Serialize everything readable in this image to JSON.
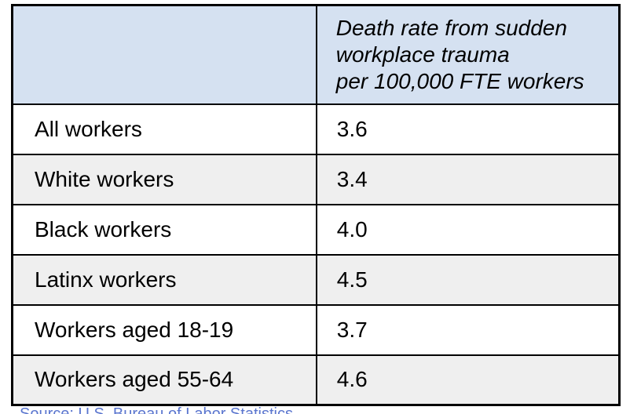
{
  "page": {
    "background": "#ffffff"
  },
  "table": {
    "header": {
      "corner_label": "",
      "value_header": "Death rate from sudden\nworkplace trauma\nper 100,000 FTE workers"
    },
    "rows": [
      {
        "label": "All workers",
        "value": "3.6"
      },
      {
        "label": "White workers",
        "value": "3.4"
      },
      {
        "label": "Black workers",
        "value": "4.0"
      },
      {
        "label": "Latinx workers",
        "value": "4.5"
      },
      {
        "label": "Workers aged 18-19",
        "value": "3.7"
      },
      {
        "label": "Workers aged 55-64",
        "value": "4.6"
      }
    ],
    "colors": {
      "header_bg": "#d5e1f1",
      "row_white": "#ffffff",
      "row_gray": "#efefef",
      "border": "#000000"
    }
  },
  "source": {
    "text": "Source: U.S. Bureau of Labor Statistics",
    "link_color": "#5b76cf"
  }
}
